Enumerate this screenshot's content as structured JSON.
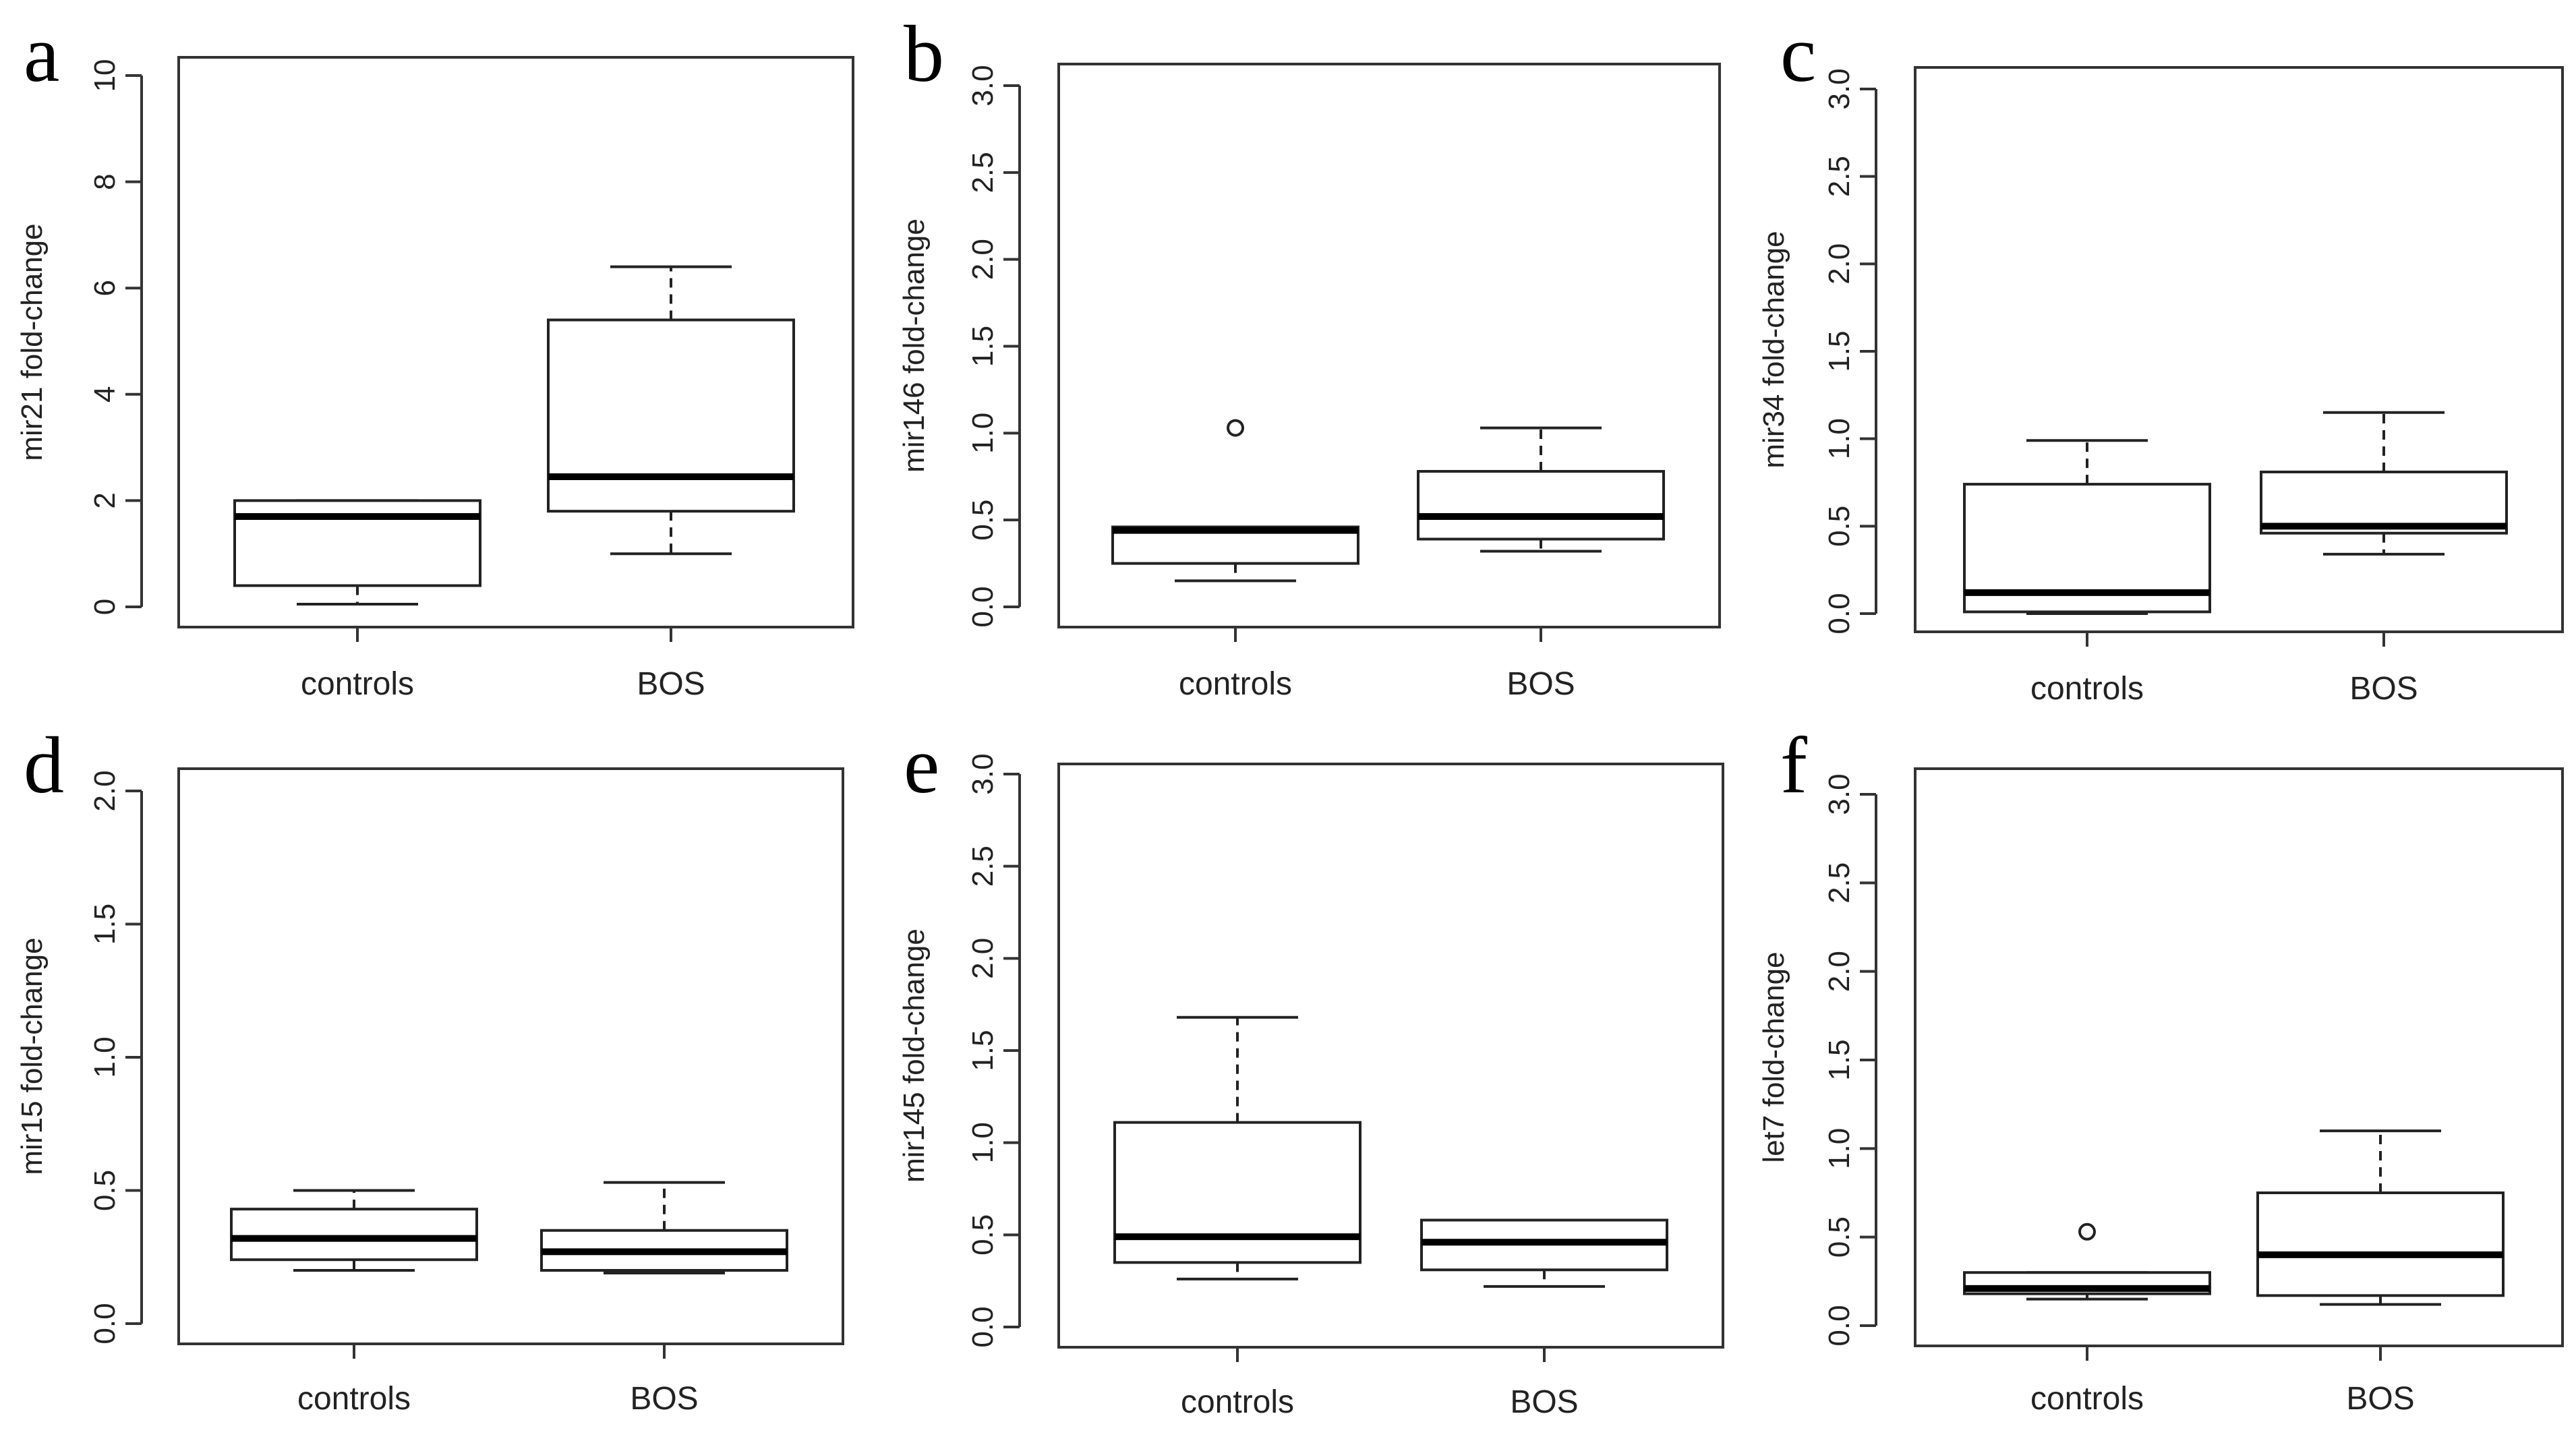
{
  "chart_data": [
    {
      "type": "box",
      "panel": "a",
      "ylabel": "mir21 fold-change",
      "ylim": [
        0,
        10
      ],
      "yticks": [
        0,
        2,
        4,
        6,
        8,
        10
      ],
      "categories": [
        "controls",
        "BOS"
      ],
      "boxes": [
        {
          "name": "controls",
          "min": 0.05,
          "q1": 0.4,
          "median": 1.7,
          "q3": 2.0,
          "max": 2.0,
          "outliers": []
        },
        {
          "name": "BOS",
          "min": 1.0,
          "q1": 1.8,
          "median": 2.45,
          "q3": 5.4,
          "max": 6.4,
          "outliers": []
        }
      ]
    },
    {
      "type": "box",
      "panel": "b",
      "ylabel": "mir146 fold-change",
      "ylim": [
        0,
        3
      ],
      "yticks": [
        0.0,
        0.5,
        1.0,
        1.5,
        2.0,
        2.5,
        3.0
      ],
      "categories": [
        "controls",
        "BOS"
      ],
      "boxes": [
        {
          "name": "controls",
          "min": 0.15,
          "q1": 0.25,
          "median": 0.44,
          "q3": 0.46,
          "max": 0.46,
          "outliers": [
            1.03
          ]
        },
        {
          "name": "BOS",
          "min": 0.32,
          "q1": 0.39,
          "median": 0.52,
          "q3": 0.78,
          "max": 1.03,
          "outliers": []
        }
      ]
    },
    {
      "type": "box",
      "panel": "c",
      "ylabel": "mir34 fold-change",
      "ylim": [
        0,
        3
      ],
      "yticks": [
        0.0,
        0.5,
        1.0,
        1.5,
        2.0,
        2.5,
        3.0
      ],
      "categories": [
        "controls",
        "BOS"
      ],
      "boxes": [
        {
          "name": "controls",
          "min": 0.0,
          "q1": 0.01,
          "median": 0.12,
          "q3": 0.74,
          "max": 0.99,
          "outliers": []
        },
        {
          "name": "BOS",
          "min": 0.34,
          "q1": 0.46,
          "median": 0.5,
          "q3": 0.81,
          "max": 1.15,
          "outliers": []
        }
      ]
    },
    {
      "type": "box",
      "panel": "d",
      "ylabel": "mir15 fold-change",
      "ylim": [
        0,
        2
      ],
      "yticks": [
        0.0,
        0.5,
        1.0,
        1.5,
        2.0
      ],
      "categories": [
        "controls",
        "BOS"
      ],
      "boxes": [
        {
          "name": "controls",
          "min": 0.2,
          "q1": 0.24,
          "median": 0.32,
          "q3": 0.43,
          "max": 0.5,
          "outliers": []
        },
        {
          "name": "BOS",
          "min": 0.19,
          "q1": 0.2,
          "median": 0.27,
          "q3": 0.35,
          "max": 0.53,
          "outliers": []
        }
      ]
    },
    {
      "type": "box",
      "panel": "e",
      "ylabel": "mir145 fold-change",
      "ylim": [
        0,
        3
      ],
      "yticks": [
        0.0,
        0.5,
        1.0,
        1.5,
        2.0,
        2.5,
        3.0
      ],
      "categories": [
        "controls",
        "BOS"
      ],
      "boxes": [
        {
          "name": "controls",
          "min": 0.26,
          "q1": 0.35,
          "median": 0.49,
          "q3": 1.11,
          "max": 1.68,
          "outliers": []
        },
        {
          "name": "BOS",
          "min": 0.22,
          "q1": 0.31,
          "median": 0.46,
          "q3": 0.58,
          "max": 0.58,
          "outliers": []
        }
      ]
    },
    {
      "type": "box",
      "panel": "f",
      "ylabel": "let7 fold-change",
      "ylim": [
        0,
        3
      ],
      "yticks": [
        0.0,
        0.5,
        1.0,
        1.5,
        2.0,
        2.5,
        3.0
      ],
      "categories": [
        "controls",
        "BOS"
      ],
      "boxes": [
        {
          "name": "controls",
          "min": 0.15,
          "q1": 0.18,
          "median": 0.21,
          "q3": 0.3,
          "max": 0.3,
          "outliers": [
            0.53
          ]
        },
        {
          "name": "BOS",
          "min": 0.12,
          "q1": 0.17,
          "median": 0.4,
          "q3": 0.75,
          "max": 1.1,
          "outliers": []
        }
      ]
    }
  ]
}
